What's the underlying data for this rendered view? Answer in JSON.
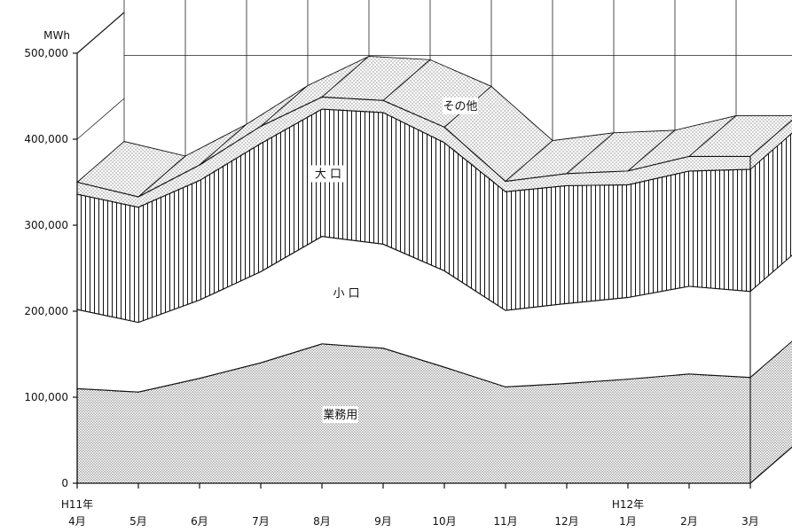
{
  "chart_data": {
    "type": "area",
    "stacked": true,
    "three_d": true,
    "unit_label": "MWh",
    "y_ticks": [
      "0",
      "100,000",
      "200,000",
      "300,000",
      "400,000",
      "500,000"
    ],
    "ylim": [
      0,
      500000
    ],
    "categories": [
      "4月",
      "5月",
      "6月",
      "7月",
      "8月",
      "9月",
      "10月",
      "11月",
      "12月",
      "1月",
      "2月",
      "3月"
    ],
    "year_labels": [
      {
        "text": "H11年",
        "category_index": 0
      },
      {
        "text": "H12年",
        "category_index": 9
      }
    ],
    "series": [
      {
        "name": "業務用",
        "pattern": "dense-dots",
        "values": [
          110000,
          106000,
          122000,
          140000,
          162000,
          157000,
          135000,
          112000,
          116000,
          121000,
          127000,
          123000
        ]
      },
      {
        "name": "小 口",
        "pattern": "none",
        "values": [
          92000,
          81000,
          91000,
          106000,
          125000,
          121000,
          112000,
          89000,
          93000,
          95000,
          102000,
          100000
        ]
      },
      {
        "name": "大 口",
        "pattern": "vertical-lines",
        "values": [
          134000,
          134000,
          139000,
          149000,
          148000,
          153000,
          149000,
          138000,
          137000,
          131000,
          134000,
          142000
        ]
      },
      {
        "name": "その他",
        "pattern": "sparse-dots",
        "values": [
          14000,
          12000,
          18000,
          20000,
          14000,
          14000,
          18000,
          12000,
          14000,
          16000,
          17000,
          15000
        ]
      }
    ],
    "grid": true,
    "legend": "inline"
  }
}
